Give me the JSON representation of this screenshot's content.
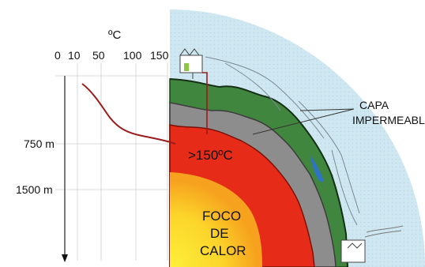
{
  "temperature_axis": {
    "unit_label": "ºC",
    "ticks": [
      "0",
      "10",
      "50",
      "100",
      "150"
    ]
  },
  "depth_axis": {
    "ticks": [
      "750 m",
      "1500 m"
    ]
  },
  "labels": {
    "hot_zone": ">150ºC",
    "caprock_line1": "CAPA",
    "caprock_line2": "IMPERMEABLE",
    "heat_source_line1": "FOCO",
    "heat_source_line2": "DE",
    "heat_source_line3": "CALOR"
  },
  "colors": {
    "sky": "#cfe7f1",
    "surface_green": "#40863e",
    "rock_gray": "#8d8d8d",
    "hot_red": "#e62c18",
    "magma_orange": "#f6a21e",
    "magma_core": "#fde12a",
    "water_blue": "#2f74c2",
    "profile_curve": "#9c1b1b"
  }
}
